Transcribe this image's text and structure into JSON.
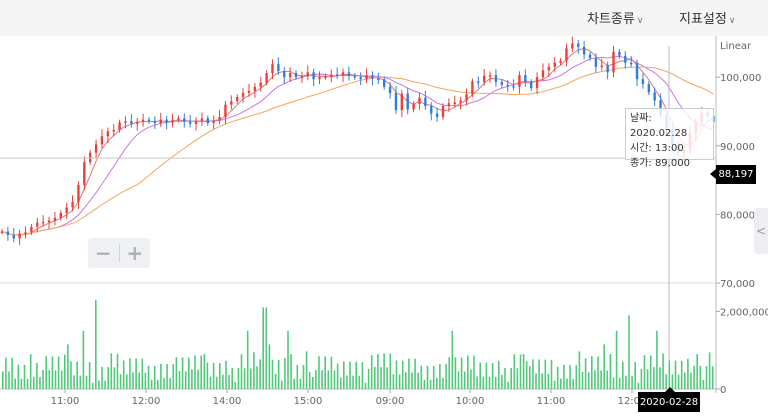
{
  "menu": {
    "chart_type": "차트종류",
    "indicator_settings": "지표설정"
  },
  "scale_label": "Linear",
  "tooltip": {
    "date": "날짜: 2020.02.28",
    "time": "시간: 13:00",
    "close": "종가: 89,000"
  },
  "current_price": "88,197",
  "crosshair_date": "2020-02-28",
  "colors": {
    "up": "#e8413b",
    "down": "#2f7fd9",
    "volume": "#52c97a",
    "ma_short": "#e6737a",
    "ma_mid": "#c978e0",
    "ma_long": "#f2a65e"
  },
  "chart_data": {
    "type": "candlestick",
    "price_ticks": [
      "100,000",
      "90,000",
      "80,000",
      "70,000"
    ],
    "price_range": [
      70000,
      106000
    ],
    "volume_ticks": [
      "2,000,000",
      "0"
    ],
    "volume_range": [
      0,
      2500000
    ],
    "time_ticks": [
      "11:00",
      "12:00",
      "14:00",
      "15:00",
      "09:00",
      "10:00",
      "11:00",
      "12:00"
    ],
    "series": [
      {
        "name": "price",
        "close_points": [
          [
            0,
            77500
          ],
          [
            3,
            77000
          ],
          [
            6,
            76500
          ],
          [
            9,
            77200
          ],
          [
            12,
            77400
          ],
          [
            15,
            78200
          ],
          [
            18,
            78800
          ],
          [
            21,
            78900
          ],
          [
            24,
            79100
          ],
          [
            27,
            79500
          ],
          [
            30,
            80200
          ],
          [
            33,
            81000
          ],
          [
            36,
            81800
          ],
          [
            39,
            84300
          ],
          [
            42,
            87600
          ],
          [
            45,
            89000
          ],
          [
            48,
            90200
          ],
          [
            51,
            91400
          ],
          [
            54,
            92100
          ],
          [
            57,
            92300
          ],
          [
            60,
            93400
          ],
          [
            63,
            93600
          ],
          [
            66,
            93200
          ],
          [
            69,
            93500
          ],
          [
            72,
            93800
          ],
          [
            75,
            93600
          ],
          [
            78,
            93300
          ],
          [
            81,
            93800
          ],
          [
            84,
            93400
          ],
          [
            87,
            93800
          ],
          [
            90,
            94000
          ],
          [
            93,
            93500
          ],
          [
            96,
            93200
          ],
          [
            99,
            93600
          ],
          [
            102,
            94000
          ],
          [
            105,
            93300
          ],
          [
            108,
            93700
          ],
          [
            111,
            94200
          ],
          [
            114,
            96000
          ],
          [
            117,
            96500
          ],
          [
            120,
            97100
          ],
          [
            123,
            97700
          ],
          [
            126,
            98000
          ],
          [
            129,
            98600
          ],
          [
            132,
            99200
          ],
          [
            135,
            100600
          ],
          [
            138,
            101900
          ],
          [
            141,
            100900
          ],
          [
            144,
            100000
          ],
          [
            147,
            100600
          ],
          [
            150,
            100000
          ],
          [
            153,
            100100
          ],
          [
            156,
            100700
          ],
          [
            159,
            99700
          ],
          [
            162,
            100000
          ],
          [
            165,
            100100
          ],
          [
            168,
            100400
          ],
          [
            171,
            100300
          ],
          [
            174,
            100700
          ],
          [
            177,
            100200
          ],
          [
            180,
            100000
          ],
          [
            183,
            99700
          ],
          [
            186,
            100300
          ],
          [
            189,
            99800
          ],
          [
            192,
            99700
          ],
          [
            195,
            98600
          ],
          [
            198,
            97700
          ],
          [
            201,
            95200
          ],
          [
            204,
            97600
          ],
          [
            207,
            95300
          ],
          [
            210,
            96100
          ],
          [
            213,
            97000
          ],
          [
            216,
            95800
          ],
          [
            219,
            94700
          ],
          [
            222,
            94200
          ],
          [
            225,
            95800
          ],
          [
            228,
            96200
          ],
          [
            231,
            96300
          ],
          [
            234,
            96600
          ],
          [
            237,
            97500
          ],
          [
            240,
            99400
          ],
          [
            243,
            99300
          ],
          [
            246,
            100200
          ],
          [
            249,
            100300
          ],
          [
            252,
            99300
          ],
          [
            255,
            98900
          ],
          [
            258,
            98700
          ],
          [
            261,
            98600
          ],
          [
            264,
            100300
          ],
          [
            267,
            99300
          ],
          [
            270,
            98400
          ],
          [
            273,
            100000
          ],
          [
            276,
            101000
          ],
          [
            279,
            101500
          ],
          [
            282,
            102100
          ],
          [
            285,
            102400
          ],
          [
            288,
            104200
          ],
          [
            291,
            104900
          ],
          [
            294,
            104400
          ],
          [
            297,
            103300
          ],
          [
            300,
            102800
          ],
          [
            303,
            101500
          ],
          [
            306,
            101700
          ],
          [
            309,
            100700
          ],
          [
            312,
            103700
          ],
          [
            315,
            103100
          ],
          [
            318,
            102100
          ],
          [
            321,
            102000
          ],
          [
            324,
            99700
          ],
          [
            327,
            99000
          ],
          [
            330,
            97800
          ],
          [
            333,
            96600
          ],
          [
            336,
            94500
          ],
          [
            339,
            92300
          ],
          [
            342,
            90200
          ],
          [
            345,
            88900
          ],
          [
            348,
            89400
          ],
          [
            351,
            91800
          ],
          [
            354,
            93500
          ],
          [
            357,
            94800
          ],
          [
            360,
            94300
          ],
          [
            363,
            93500
          ]
        ]
      }
    ]
  }
}
